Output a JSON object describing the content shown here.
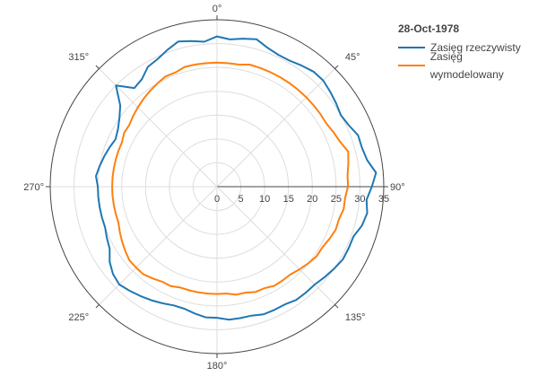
{
  "chart_data": {
    "type": "line",
    "subtype": "polar",
    "title": "",
    "legend": {
      "title": "28-Oct-1978",
      "placement": "top-right"
    },
    "radial_axis": {
      "range": [
        0,
        35
      ],
      "ticks": [
        "0",
        "5",
        "10",
        "15",
        "20",
        "25",
        "30",
        "35"
      ]
    },
    "angular_axis": {
      "direction": "clockwise",
      "rotation": "0° at top",
      "ticks": [
        "0°",
        "45°",
        "90°",
        "135°",
        "180°",
        "225°",
        "270°",
        "315°"
      ]
    },
    "grid": true,
    "theta_step_deg": 5,
    "series": [
      {
        "name": "Zasięg rzeczywisty",
        "color": "#1f77b4",
        "theta": [
          0,
          5,
          10,
          15,
          20,
          25,
          30,
          35,
          40,
          45,
          50,
          55,
          60,
          65,
          70,
          75,
          80,
          85,
          90,
          95,
          100,
          105,
          110,
          115,
          120,
          125,
          130,
          135,
          140,
          145,
          150,
          155,
          160,
          165,
          170,
          175,
          180,
          185,
          190,
          195,
          200,
          205,
          210,
          215,
          220,
          225,
          230,
          235,
          240,
          245,
          250,
          255,
          260,
          265,
          270,
          275,
          280,
          285,
          290,
          295,
          300,
          305,
          310,
          315,
          320,
          325,
          330,
          335,
          340,
          345,
          350,
          355
        ],
        "r": [
          31.5,
          31.0,
          31.5,
          32.0,
          31.0,
          30.5,
          30.5,
          31.0,
          31.5,
          31.5,
          31.0,
          30.5,
          30.0,
          30.5,
          31.5,
          31.5,
          32.0,
          33.5,
          32.5,
          31.5,
          32.0,
          31.5,
          30.5,
          30.5,
          30.5,
          30.0,
          29.5,
          29.0,
          29.0,
          29.0,
          28.5,
          28.5,
          28.5,
          28.0,
          28.0,
          28.0,
          27.5,
          27.5,
          27.0,
          26.5,
          26.5,
          27.0,
          27.5,
          28.0,
          28.5,
          29.0,
          28.5,
          27.5,
          26.0,
          25.5,
          25.0,
          25.0,
          25.0,
          25.0,
          25.0,
          25.5,
          25.0,
          24.5,
          24.0,
          23.5,
          24.0,
          25.0,
          26.5,
          30.0,
          27.0,
          27.5,
          29.0,
          29.5,
          30.5,
          31.5,
          31.0,
          30.5
        ]
      },
      {
        "name": "Zasięg wymodelowany",
        "color": "#ff7f0e",
        "theta": [
          0,
          5,
          10,
          15,
          20,
          25,
          30,
          35,
          40,
          45,
          50,
          55,
          60,
          65,
          70,
          75,
          80,
          85,
          90,
          95,
          100,
          105,
          110,
          115,
          120,
          125,
          130,
          135,
          140,
          145,
          150,
          155,
          160,
          165,
          170,
          175,
          180,
          185,
          190,
          195,
          200,
          205,
          210,
          215,
          220,
          225,
          230,
          235,
          240,
          245,
          250,
          255,
          260,
          265,
          270,
          275,
          280,
          285,
          290,
          295,
          300,
          305,
          310,
          315,
          320,
          325,
          330,
          335,
          340,
          345,
          350,
          355
        ],
        "r": [
          26.0,
          26.0,
          26.0,
          26.5,
          26.5,
          26.5,
          26.5,
          26.5,
          26.5,
          26.5,
          26.5,
          26.5,
          26.5,
          27.0,
          27.5,
          28.5,
          28.0,
          27.5,
          27.5,
          27.0,
          27.0,
          26.5,
          26.5,
          26.0,
          25.5,
          25.5,
          25.0,
          24.5,
          24.0,
          24.0,
          24.0,
          23.5,
          23.5,
          23.0,
          23.0,
          22.5,
          22.5,
          22.5,
          22.5,
          22.5,
          22.5,
          23.0,
          23.0,
          23.5,
          24.0,
          24.0,
          24.0,
          23.5,
          23.0,
          22.5,
          22.0,
          22.0,
          22.0,
          22.0,
          22.0,
          22.0,
          22.0,
          22.0,
          22.0,
          22.0,
          22.5,
          22.5,
          23.0,
          23.5,
          24.0,
          24.5,
          25.0,
          25.5,
          25.5,
          26.0,
          26.0,
          26.0
        ]
      }
    ]
  }
}
